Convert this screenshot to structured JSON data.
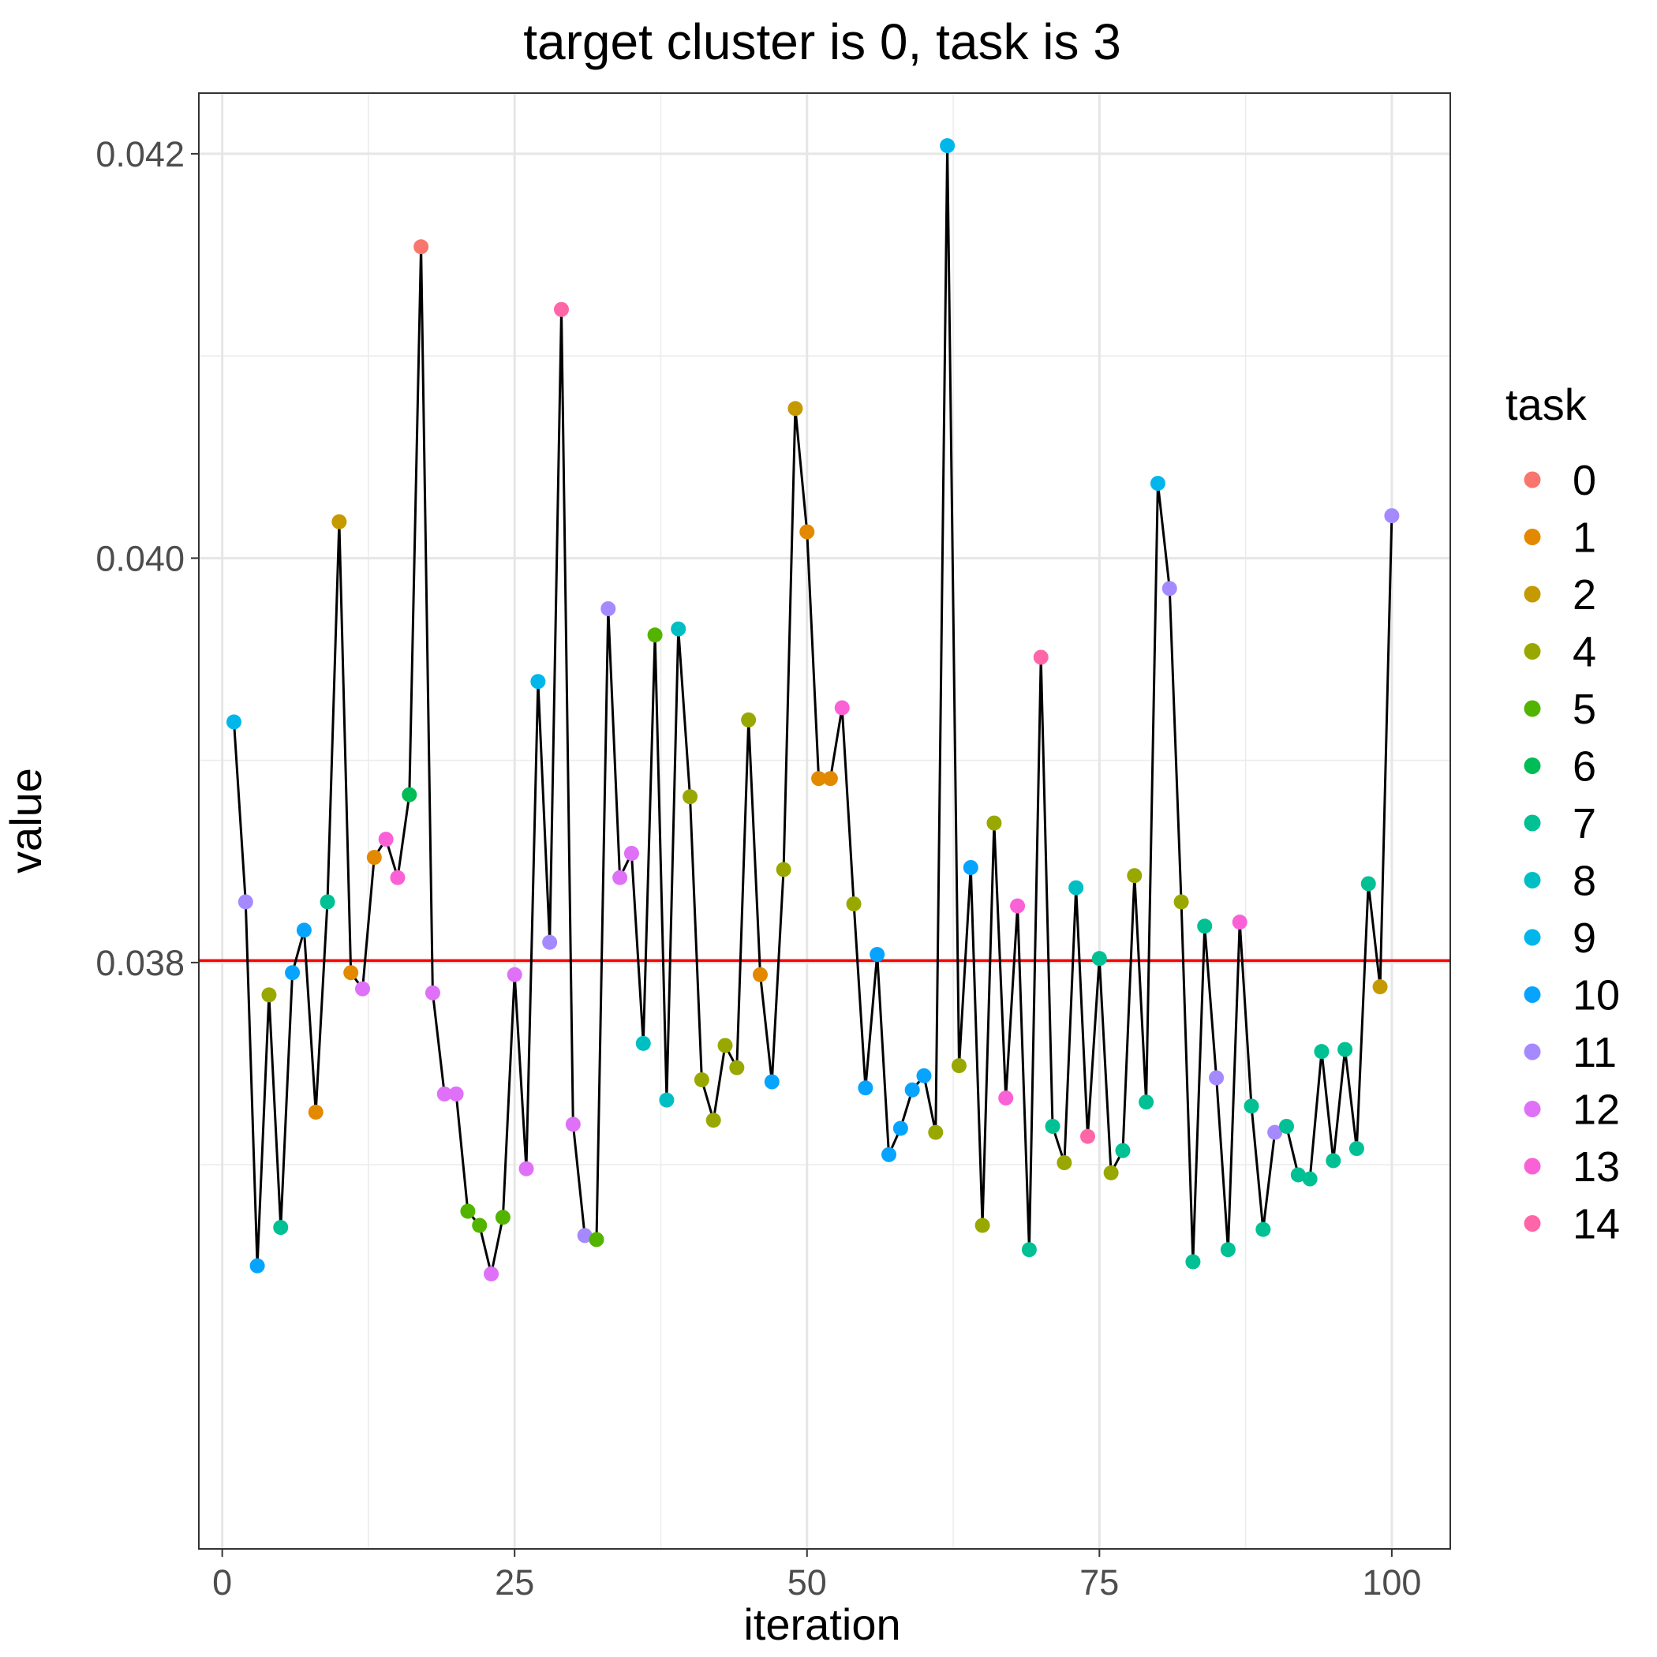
{
  "chart_data": {
    "type": "scatter",
    "title": "target cluster is 0, task is 3",
    "xlabel": "iteration",
    "ylabel": "value",
    "xlim": [
      -2,
      105
    ],
    "ylim": [
      0.0351,
      0.0423
    ],
    "x_ticks": [
      0,
      25,
      50,
      75,
      100
    ],
    "x_tick_labels": [
      "0",
      "25",
      "50",
      "75",
      "100"
    ],
    "y_ticks": [
      0.038,
      0.04,
      0.042
    ],
    "y_tick_labels": [
      "0.038",
      "0.040",
      "0.042"
    ],
    "y_minor_ticks": [
      0.037,
      0.039,
      0.041
    ],
    "x_minor_ticks": [
      12.5,
      37.5,
      62.5,
      87.5
    ],
    "grid": true,
    "reference_line": {
      "y": 0.03801,
      "color": "#ff0000"
    },
    "connecting_line_color": "#000000",
    "legend": {
      "title": "task",
      "placement": "right",
      "entries": [
        {
          "label": "0",
          "task": 0,
          "color": "#F8766D"
        },
        {
          "label": "1",
          "task": 1,
          "color": "#E38900"
        },
        {
          "label": "2",
          "task": 2,
          "color": "#C49A00"
        },
        {
          "label": "4",
          "task": 4,
          "color": "#99A800"
        },
        {
          "label": "5",
          "task": 5,
          "color": "#53B400"
        },
        {
          "label": "6",
          "task": 6,
          "color": "#00BC56"
        },
        {
          "label": "7",
          "task": 7,
          "color": "#00C094"
        },
        {
          "label": "8",
          "task": 8,
          "color": "#00BFC4"
        },
        {
          "label": "9",
          "task": 9,
          "color": "#00B6EB"
        },
        {
          "label": "10",
          "task": 10,
          "color": "#06A4FF"
        },
        {
          "label": "11",
          "task": 11,
          "color": "#A58AFF"
        },
        {
          "label": "12",
          "task": 12,
          "color": "#DF70F8"
        },
        {
          "label": "13",
          "task": 13,
          "color": "#FB61D7"
        },
        {
          "label": "14",
          "task": 14,
          "color": "#FF66A8"
        }
      ]
    },
    "series": [
      {
        "x": [
          1,
          2,
          3,
          4,
          5,
          6,
          7,
          8,
          9,
          10,
          11,
          12,
          13,
          14,
          15,
          16,
          17,
          18,
          19,
          20,
          21,
          22,
          23,
          24,
          25,
          26,
          27,
          28,
          29,
          30,
          31,
          32,
          33,
          34,
          35,
          36,
          37,
          38,
          39,
          40,
          41,
          42,
          43,
          44,
          45,
          46,
          47,
          48,
          49,
          50,
          51,
          52,
          53,
          54,
          55,
          56,
          57,
          58,
          59,
          60,
          61,
          62,
          63,
          64,
          65,
          66,
          67,
          68,
          69,
          70,
          71,
          72,
          73,
          74,
          75,
          76,
          77,
          78,
          79,
          80,
          81,
          82,
          83,
          84,
          85,
          86,
          87,
          88,
          89,
          90,
          91,
          92,
          93,
          94,
          95,
          96,
          97,
          98,
          99,
          100
        ],
        "y": [
          0.03919,
          0.0383,
          0.0365,
          0.03784,
          0.03669,
          0.03795,
          0.03816,
          0.03726,
          0.0383,
          0.04018,
          0.03795,
          0.03787,
          0.03852,
          0.03861,
          0.03842,
          0.03883,
          0.04154,
          0.03785,
          0.03735,
          0.03735,
          0.03677,
          0.0367,
          0.03646,
          0.03674,
          0.03794,
          0.03698,
          0.03939,
          0.0381,
          0.04123,
          0.0372,
          0.03665,
          0.03663,
          0.03975,
          0.03842,
          0.03854,
          0.0376,
          0.03962,
          0.03732,
          0.03965,
          0.03882,
          0.03742,
          0.03722,
          0.03759,
          0.03748,
          0.0392,
          0.03794,
          0.03741,
          0.03846,
          0.04074,
          0.04013,
          0.03891,
          0.03891,
          0.03926,
          0.03829,
          0.03738,
          0.03804,
          0.03705,
          0.03718,
          0.03737,
          0.03744,
          0.03716,
          0.04204,
          0.03749,
          0.03847,
          0.0367,
          0.03869,
          0.03733,
          0.03828,
          0.03658,
          0.03951,
          0.03719,
          0.03701,
          0.03837,
          0.03714,
          0.03802,
          0.03696,
          0.03707,
          0.03843,
          0.03731,
          0.04037,
          0.03985,
          0.0383,
          0.03652,
          0.03818,
          0.03743,
          0.03658,
          0.0382,
          0.03729,
          0.03668,
          0.03716,
          0.03719,
          0.03695,
          0.03693,
          0.03756,
          0.03702,
          0.03757,
          0.03708,
          0.03839,
          0.03788,
          0.04021
        ],
        "task": [
          9,
          11,
          10,
          4,
          7,
          10,
          10,
          1,
          7,
          2,
          1,
          12,
          1,
          13,
          13,
          6,
          0,
          12,
          12,
          12,
          5,
          5,
          12,
          5,
          12,
          12,
          9,
          11,
          14,
          12,
          11,
          5,
          11,
          12,
          12,
          8,
          5,
          8,
          8,
          4,
          4,
          4,
          4,
          4,
          4,
          1,
          10,
          4,
          2,
          1,
          1,
          1,
          13,
          4,
          10,
          10,
          10,
          10,
          10,
          10,
          4,
          9,
          4,
          10,
          4,
          4,
          13,
          13,
          7,
          14,
          7,
          4,
          8,
          14,
          7,
          4,
          7,
          4,
          7,
          9,
          11,
          4,
          7,
          7,
          11,
          7,
          13,
          7,
          7,
          11,
          7,
          7,
          7,
          7,
          7,
          7,
          7,
          7,
          2,
          11
        ]
      }
    ]
  }
}
